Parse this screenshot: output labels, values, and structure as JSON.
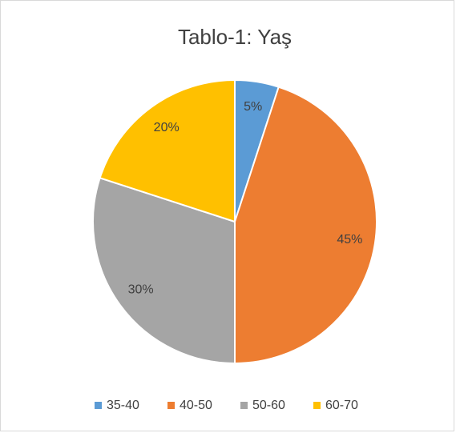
{
  "chart_data": {
    "type": "pie",
    "title": "Tablo-1: Yaş",
    "categories": [
      "35-40",
      "40-50",
      "50-60",
      "60-70"
    ],
    "values": [
      5,
      45,
      30,
      20
    ],
    "value_labels": [
      "5%",
      "45%",
      "30%",
      "20%"
    ],
    "colors": [
      "#5b9bd5",
      "#ed7d31",
      "#a5a5a5",
      "#ffc000"
    ],
    "legend": "bottom"
  }
}
